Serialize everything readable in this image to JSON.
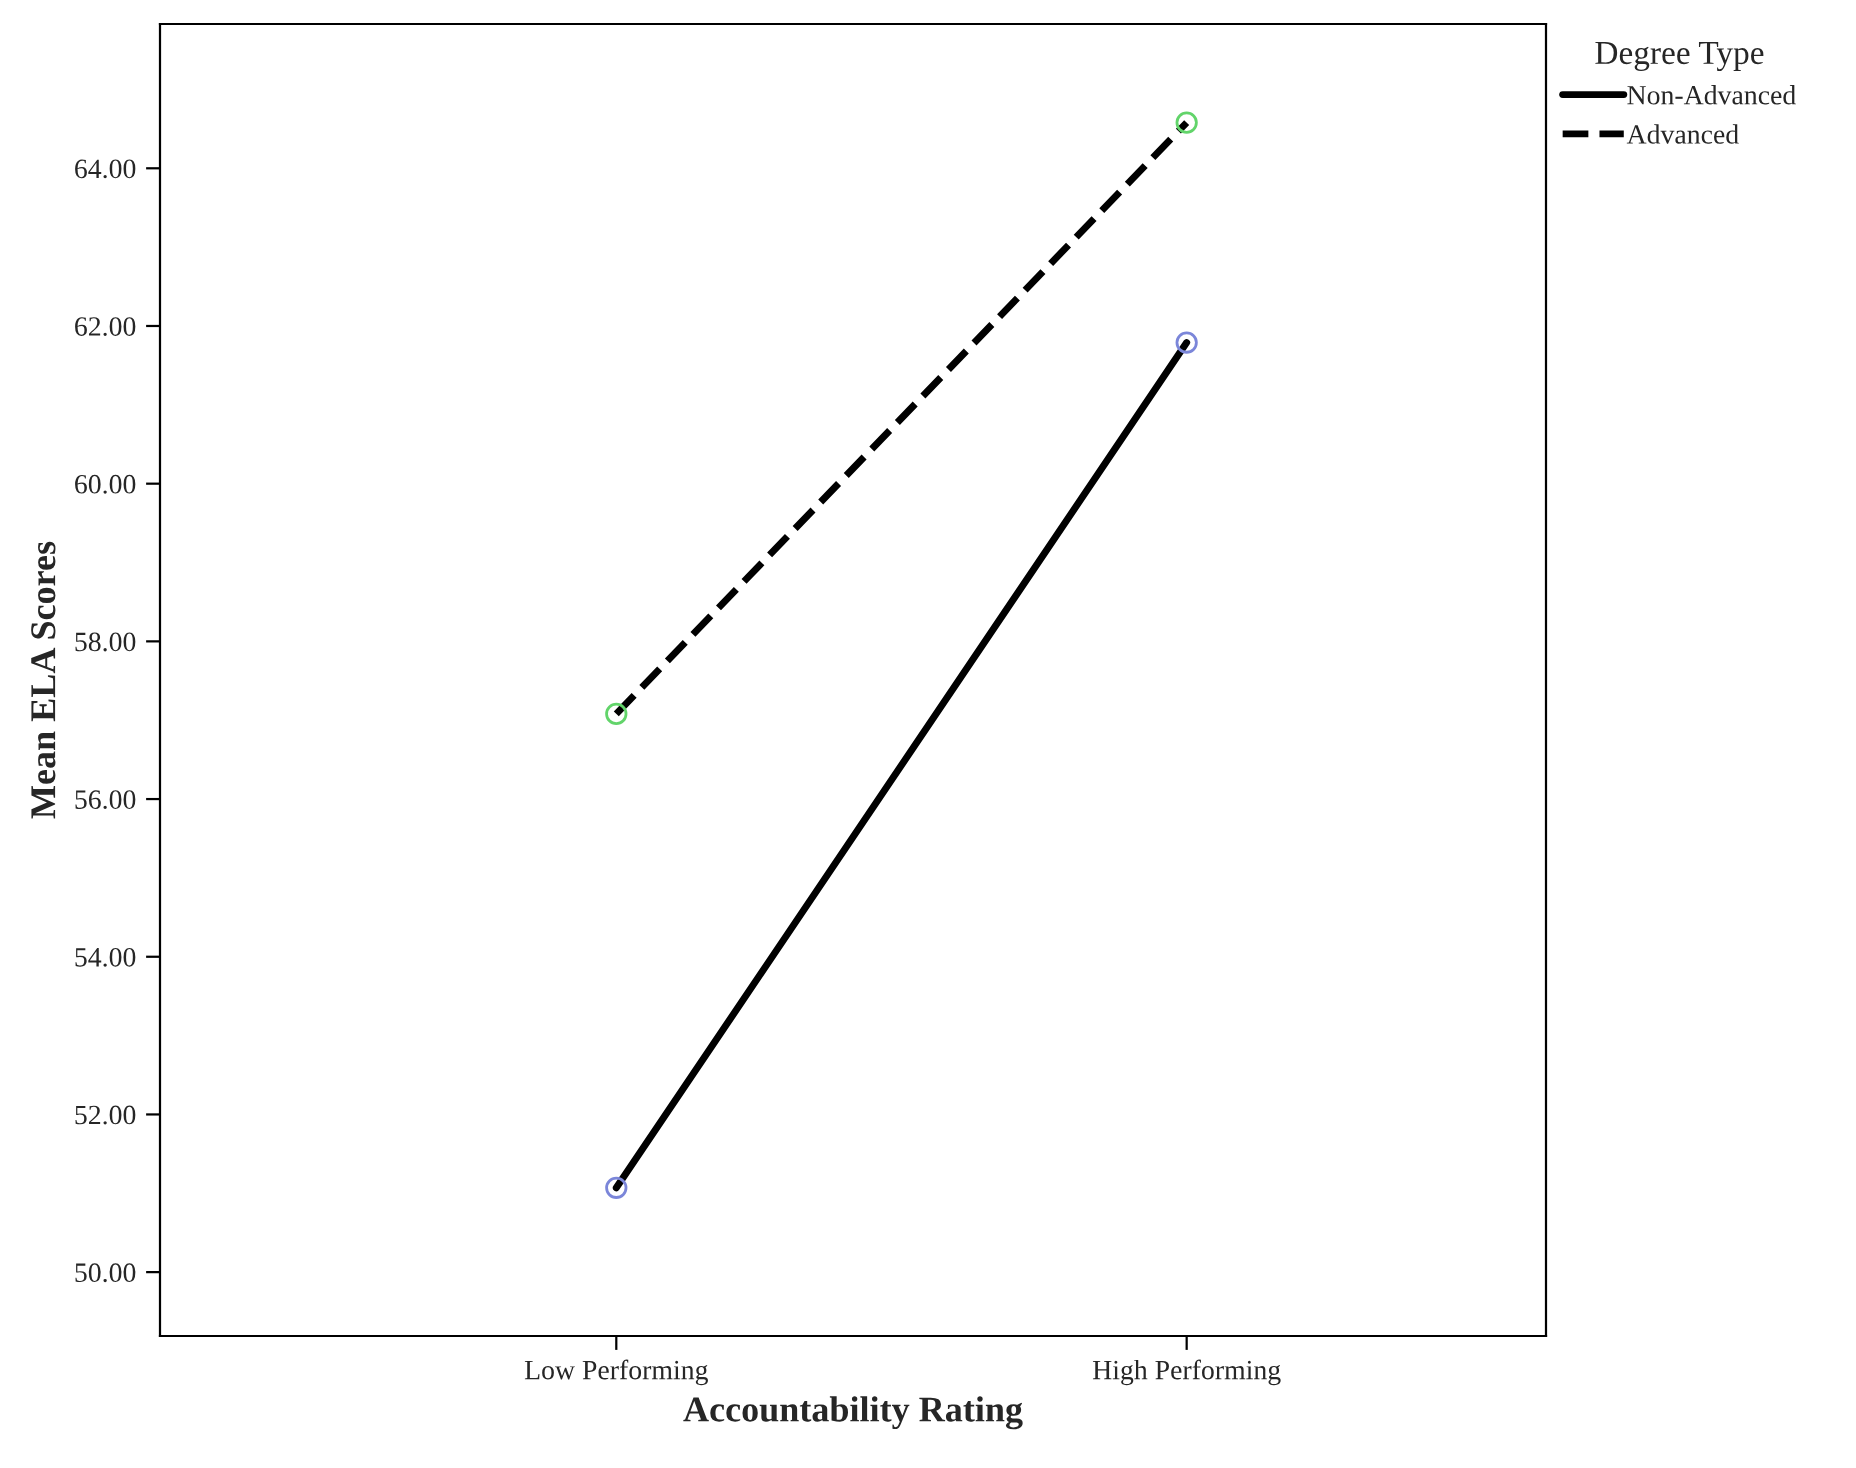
{
  "chart_data": {
    "type": "line",
    "xlabel": "Accountability Rating",
    "ylabel": "Mean ELA Scores",
    "legend_title": "Degree Type",
    "categories": [
      "Low Performing",
      "High Performing"
    ],
    "series": [
      {
        "name": "Non-Advanced",
        "color": "#000000",
        "colors": [
          "#7b86d9",
          "#7b86d9"
        ],
        "line_style": "solid",
        "values": [
          51.07,
          61.79
        ]
      },
      {
        "name": "Advanced",
        "color": "#000000",
        "colors": [
          "#62d46a",
          "#62d46a"
        ],
        "line_style": "dashed",
        "values": [
          57.08,
          64.58
        ]
      }
    ],
    "ylim": [
      49.19,
      65.83
    ],
    "yticks": [
      {
        "value": 50,
        "label": "50.00"
      },
      {
        "value": 52,
        "label": "52.00"
      },
      {
        "value": 54,
        "label": "54.00"
      },
      {
        "value": 56,
        "label": "56.00"
      },
      {
        "value": 58,
        "label": "58.00"
      },
      {
        "value": 60,
        "label": "60.00"
      },
      {
        "value": 62,
        "label": "62.00"
      },
      {
        "value": 64,
        "label": "64.00"
      }
    ],
    "marker": "circle",
    "grid": false,
    "legend": "top right"
  }
}
